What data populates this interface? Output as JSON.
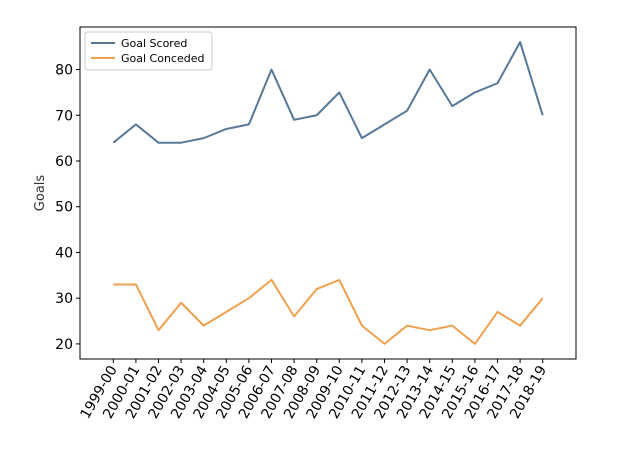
{
  "chart_data": {
    "type": "line",
    "title": "",
    "xlabel": "",
    "ylabel": "Goals",
    "categories": [
      "1999-00",
      "2000-01",
      "2001-02",
      "2002-03",
      "2003-04",
      "2004-05",
      "2005-06",
      "2006-07",
      "2007-08",
      "2008-09",
      "2009-10",
      "2010-11",
      "2011-12",
      "2012-13",
      "2013-14",
      "2014-15",
      "2015-16",
      "2016-17",
      "2017-18",
      "2018-19"
    ],
    "series": [
      {
        "name": "Goal Scored",
        "color": "#587897",
        "values": [
          64,
          68,
          64,
          64,
          65,
          67,
          68,
          80,
          69,
          70,
          75,
          65,
          68,
          71,
          80,
          72,
          75,
          77,
          86,
          70
        ]
      },
      {
        "name": "Goal Conceded",
        "color": "#f0a150",
        "values": [
          33,
          33,
          23,
          29,
          24,
          27,
          30,
          34,
          26,
          32,
          34,
          24,
          20,
          24,
          23,
          24,
          20,
          27,
          24,
          30
        ]
      }
    ],
    "ylim": [
      16.7,
      89.3
    ],
    "yticks": [
      20,
      30,
      40,
      50,
      60,
      70,
      80
    ],
    "grid": false,
    "legend_position": "top-left"
  }
}
